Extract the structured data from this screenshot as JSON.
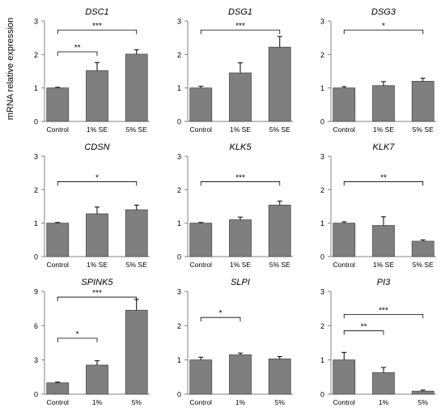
{
  "ylabel": "mRNA relative expression",
  "chart_data": [
    {
      "type": "bar",
      "title": "DSC1",
      "categories": [
        "Control",
        "1% SE",
        "5% SE"
      ],
      "values": [
        1.0,
        1.52,
        2.01
      ],
      "errors": [
        0.02,
        0.24,
        0.13
      ],
      "ylim": [
        0,
        3
      ],
      "yticks": [
        0,
        1,
        2,
        3
      ],
      "significance": [
        {
          "from": 0,
          "to": 1,
          "label": "**",
          "y": 2.08
        },
        {
          "from": 0,
          "to": 2,
          "label": "***",
          "y": 2.73
        }
      ]
    },
    {
      "type": "bar",
      "title": "DSG1",
      "categories": [
        "Control",
        "1% SE",
        "5% SE"
      ],
      "values": [
        1.0,
        1.45,
        2.22
      ],
      "errors": [
        0.05,
        0.3,
        0.32
      ],
      "ylim": [
        0,
        3
      ],
      "yticks": [
        0,
        1,
        2,
        3
      ],
      "significance": [
        {
          "from": 0,
          "to": 2,
          "label": "***",
          "y": 2.73
        }
      ]
    },
    {
      "type": "bar",
      "title": "DSG3",
      "categories": [
        "Control",
        "1% SE",
        "5% SE"
      ],
      "values": [
        1.0,
        1.07,
        1.2
      ],
      "errors": [
        0.04,
        0.12,
        0.09
      ],
      "ylim": [
        0,
        3
      ],
      "yticks": [
        0,
        1,
        2,
        3
      ],
      "significance": [
        {
          "from": 0,
          "to": 2,
          "label": "*",
          "y": 2.73
        }
      ]
    },
    {
      "type": "bar",
      "title": "CDSN",
      "categories": [
        "Control",
        "1% SE",
        "5% SE"
      ],
      "values": [
        1.0,
        1.28,
        1.4
      ],
      "errors": [
        0.02,
        0.2,
        0.14
      ],
      "ylim": [
        0,
        3
      ],
      "yticks": [
        0,
        1,
        2,
        3
      ],
      "significance": [
        {
          "from": 0,
          "to": 2,
          "label": "*",
          "y": 2.24
        }
      ]
    },
    {
      "type": "bar",
      "title": "KLK5",
      "categories": [
        "Control",
        "1% SE",
        "5% SE"
      ],
      "values": [
        1.0,
        1.1,
        1.54
      ],
      "errors": [
        0.02,
        0.08,
        0.12
      ],
      "ylim": [
        0,
        3
      ],
      "yticks": [
        0,
        1,
        2,
        3
      ],
      "significance": [
        {
          "from": 0,
          "to": 2,
          "label": "***",
          "y": 2.24
        }
      ]
    },
    {
      "type": "bar",
      "title": "KLK7",
      "categories": [
        "Control",
        "1% SE",
        "5% SE"
      ],
      "values": [
        1.0,
        0.93,
        0.46
      ],
      "errors": [
        0.04,
        0.26,
        0.04
      ],
      "ylim": [
        0,
        3
      ],
      "yticks": [
        0,
        1,
        2,
        3
      ],
      "significance": [
        {
          "from": 0,
          "to": 2,
          "label": "**",
          "y": 2.24
        }
      ]
    },
    {
      "type": "bar",
      "title": "SPINK5",
      "categories": [
        "Control",
        "1%",
        "5%"
      ],
      "values": [
        1.0,
        2.55,
        7.35
      ],
      "errors": [
        0.06,
        0.38,
        0.95
      ],
      "ylim": [
        0,
        9
      ],
      "yticks": [
        0,
        3,
        6,
        9
      ],
      "significance": [
        {
          "from": 0,
          "to": 1,
          "label": "*",
          "y": 4.9
        },
        {
          "from": 0,
          "to": 2,
          "label": "***",
          "y": 8.5
        }
      ]
    },
    {
      "type": "bar",
      "title": "SLPI",
      "categories": [
        "Control",
        "1%",
        "5%"
      ],
      "values": [
        1.0,
        1.15,
        1.03
      ],
      "errors": [
        0.08,
        0.05,
        0.07
      ],
      "ylim": [
        0,
        3
      ],
      "yticks": [
        0,
        1,
        2,
        3
      ],
      "significance": [
        {
          "from": 0,
          "to": 1,
          "label": "*",
          "y": 2.24
        }
      ]
    },
    {
      "type": "bar",
      "title": "PI3",
      "categories": [
        "Control",
        "1%",
        "5%"
      ],
      "values": [
        1.0,
        0.63,
        0.09
      ],
      "errors": [
        0.22,
        0.15,
        0.03
      ],
      "ylim": [
        0,
        3
      ],
      "yticks": [
        0,
        1,
        2,
        3
      ],
      "significance": [
        {
          "from": 0,
          "to": 1,
          "label": "**",
          "y": 1.85
        },
        {
          "from": 0,
          "to": 2,
          "label": "***",
          "y": 2.33
        }
      ]
    }
  ],
  "colors": {
    "bar_fill": "#7f7f7f",
    "bar_stroke": "#4d4d4d",
    "axis": "#808080",
    "text": "#000000"
  }
}
